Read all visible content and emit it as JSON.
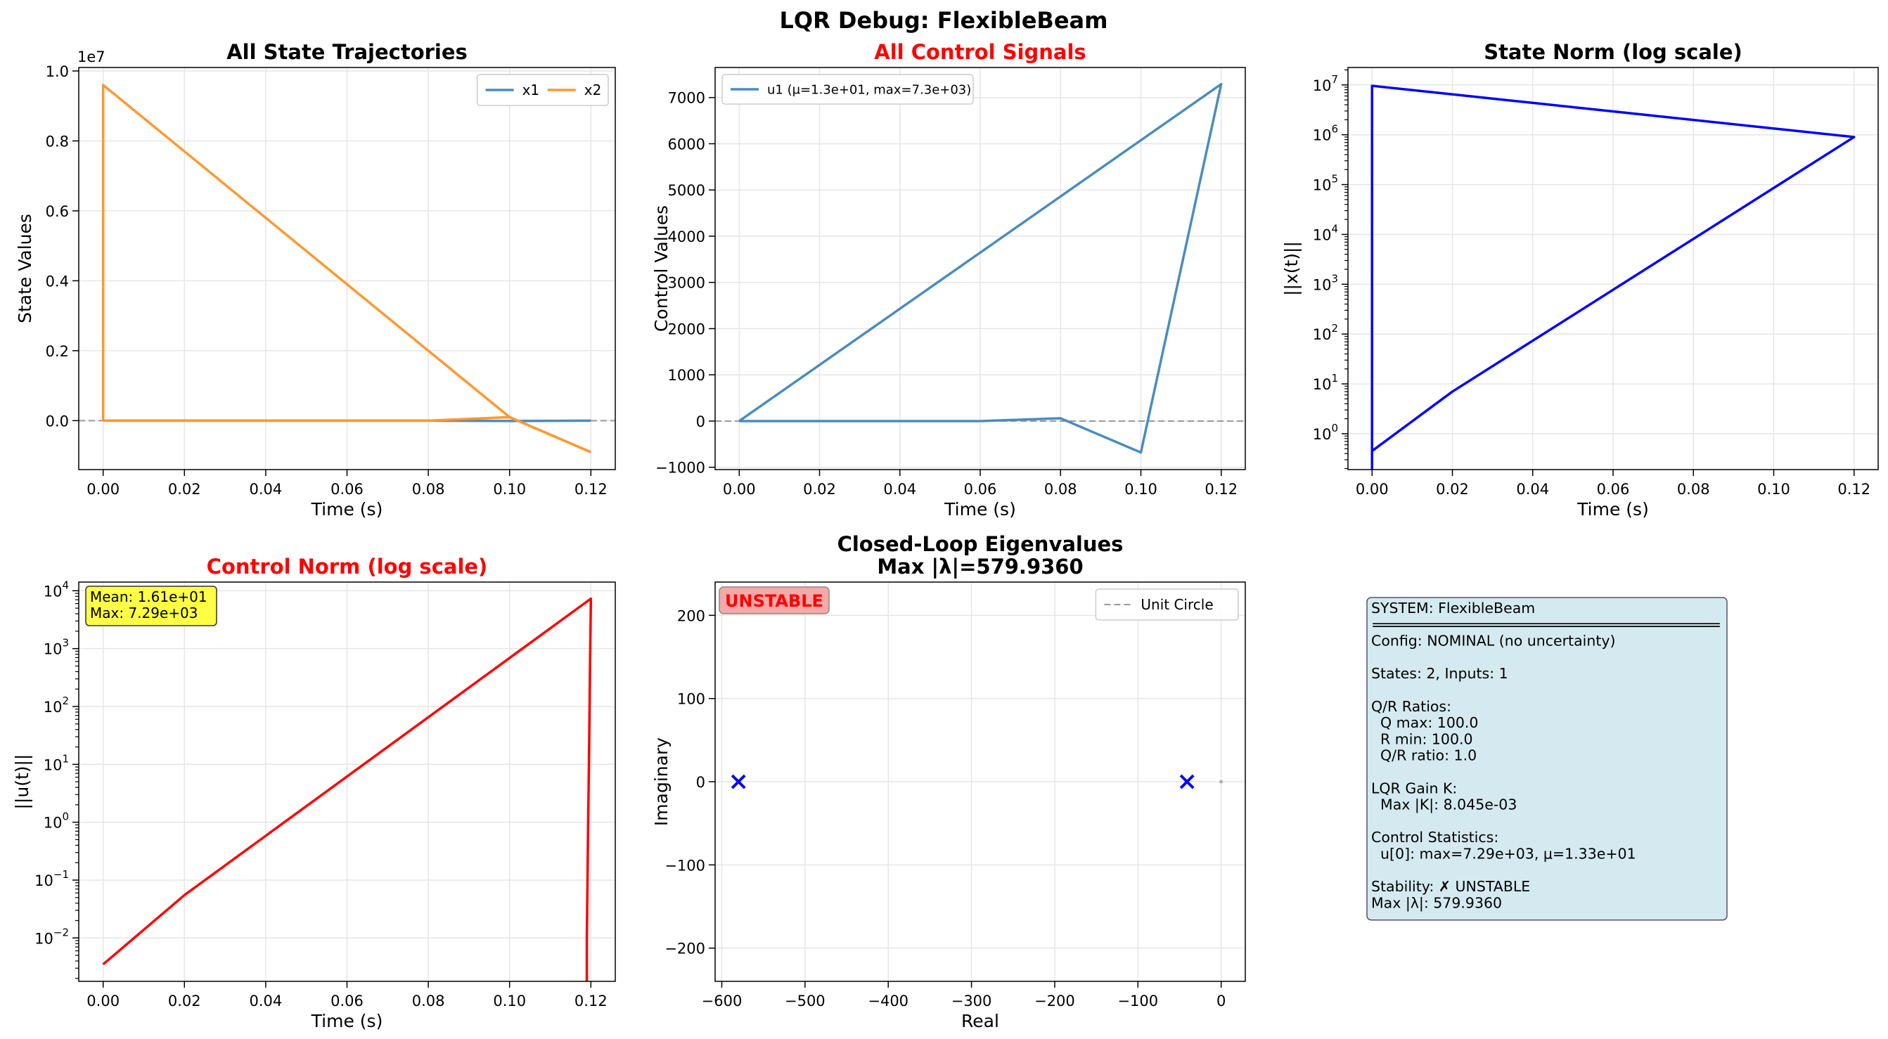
{
  "suptitle": "LQR Debug: FlexibleBeam",
  "colors": {
    "x1": "#4a8cbf",
    "x2": "#ff9831",
    "u1": "#4a8cbf",
    "state_norm": "#0000ff",
    "control_norm": "#ff0000",
    "eig": "#0000ff",
    "red_title": "#ff0000",
    "info_bg": "#d4eaf0",
    "badge_bg": "#f6a9a9",
    "stats_bg": "#ffff44"
  },
  "chart_data": [
    {
      "id": "states",
      "type": "line",
      "title": "All State Trajectories",
      "xlabel": "Time (s)",
      "ylabel": "State Values",
      "offset_text": "1e7",
      "xlim": [
        -0.006,
        0.126
      ],
      "ylim": [
        -0.14,
        1.01
      ],
      "xticks": [
        0.0,
        0.02,
        0.04,
        0.06,
        0.08,
        0.1,
        0.12
      ],
      "xticklabels": [
        "0.00",
        "0.02",
        "0.04",
        "0.06",
        "0.08",
        "0.10",
        "0.12"
      ],
      "yticks": [
        0.0,
        0.2,
        0.4,
        0.6,
        0.8,
        1.0
      ],
      "yticklabels": [
        "0.0",
        "0.2",
        "0.4",
        "0.6",
        "0.8",
        "1.0"
      ],
      "grid": true,
      "zero_line": true,
      "legend": "top-right",
      "series": [
        {
          "name": "x1",
          "x": [
            0.0,
            0.0,
            0.02,
            0.04,
            0.06,
            0.08,
            0.1,
            0.12
          ],
          "y": [
            0.0,
            0.0,
            0.0,
            0.0,
            0.0,
            0.0,
            -0.001,
            0.0
          ]
        },
        {
          "name": "x2",
          "x": [
            0.0,
            0.0,
            0.1,
            0.12
          ],
          "y": [
            0.0,
            0.96,
            0.01,
            -0.09
          ]
        },
        {
          "name": "x2",
          "x": [
            0.0,
            0.02,
            0.04,
            0.06,
            0.08,
            0.1,
            0.12
          ],
          "y": [
            0.0,
            0.0,
            0.0,
            0.0,
            0.0,
            0.01,
            -0.09
          ]
        }
      ]
    },
    {
      "id": "controls",
      "type": "line",
      "title": "All Control Signals",
      "title_color": "red",
      "xlabel": "Time (s)",
      "ylabel": "Control Values",
      "xlim": [
        -0.006,
        0.126
      ],
      "ylim": [
        -1050,
        7650
      ],
      "xticks": [
        0.0,
        0.02,
        0.04,
        0.06,
        0.08,
        0.1,
        0.12
      ],
      "xticklabels": [
        "0.00",
        "0.02",
        "0.04",
        "0.06",
        "0.08",
        "0.10",
        "0.12"
      ],
      "yticks": [
        -1000,
        0,
        1000,
        2000,
        3000,
        4000,
        5000,
        6000,
        7000
      ],
      "yticklabels": [
        "−1000",
        "0",
        "1000",
        "2000",
        "3000",
        "4000",
        "5000",
        "6000",
        "7000"
      ],
      "grid": true,
      "zero_line": true,
      "legend": "top-left",
      "series": [
        {
          "name": "u1 (μ=1.3e+01, max=7.3e+03)",
          "x": [
            0.0,
            0.12,
            0.1,
            0.08,
            0.06,
            0.0
          ],
          "y": [
            0,
            7290,
            -680,
            60,
            0,
            0
          ]
        }
      ]
    },
    {
      "id": "state_norm",
      "type": "line",
      "title": "State Norm (log scale)",
      "xlabel": "Time (s)",
      "ylabel": "||x(t)||",
      "yscale": "log",
      "xlim": [
        -0.006,
        0.126
      ],
      "ylim_log10": [
        -0.72,
        7.35
      ],
      "xticks": [
        0.0,
        0.02,
        0.04,
        0.06,
        0.08,
        0.1,
        0.12
      ],
      "xticklabels": [
        "0.00",
        "0.02",
        "0.04",
        "0.06",
        "0.08",
        "0.10",
        "0.12"
      ],
      "yticks_exp": [
        0,
        1,
        2,
        3,
        4,
        5,
        6,
        7
      ],
      "grid": true,
      "series": [
        {
          "name": "",
          "x": [
            0.0,
            0.0,
            0.12,
            0.02,
            0.0,
            0.0
          ],
          "y": [
            0.05,
            9600000,
            900000,
            7,
            0.45,
            0.05
          ]
        }
      ]
    },
    {
      "id": "control_norm",
      "type": "line",
      "title": "Control Norm (log scale)",
      "title_color": "red",
      "xlabel": "Time (s)",
      "ylabel": "||u(t)||",
      "yscale": "log",
      "xlim": [
        -0.006,
        0.126
      ],
      "ylim_log10": [
        -2.75,
        4.15
      ],
      "xticks": [
        0.0,
        0.02,
        0.04,
        0.06,
        0.08,
        0.1,
        0.12
      ],
      "xticklabels": [
        "0.00",
        "0.02",
        "0.04",
        "0.06",
        "0.08",
        "0.10",
        "0.12"
      ],
      "yticks_exp": [
        -2,
        -1,
        0,
        1,
        2,
        3,
        4
      ],
      "grid": true,
      "stats_box": [
        "Mean: 1.61e+01",
        "Max: 7.29e+03"
      ],
      "series": [
        {
          "name": "",
          "x": [
            0.0,
            0.02,
            0.12,
            0.119,
            0.119
          ],
          "y": [
            0.0035,
            0.055,
            7290,
            0.01,
            0.0015
          ]
        }
      ]
    },
    {
      "id": "eigenvalues",
      "type": "scatter",
      "title": "Closed-Loop Eigenvalues",
      "subtitle": "Max |λ|=579.9360",
      "xlabel": "Real",
      "ylabel": "Imaginary",
      "xlim": [
        -608,
        29
      ],
      "ylim": [
        -240,
        240
      ],
      "xticks": [
        -600,
        -500,
        -400,
        -300,
        -200,
        -100,
        0
      ],
      "xticklabels": [
        "−600",
        "−500",
        "−400",
        "−300",
        "−200",
        "−100",
        "0"
      ],
      "yticks": [
        -200,
        -100,
        0,
        100,
        200
      ],
      "yticklabels": [
        "−200",
        "−100",
        "0",
        "100",
        "200"
      ],
      "grid": true,
      "legend": "top-right",
      "badge": "UNSTABLE",
      "unit_circle": {
        "name": "Unit Circle",
        "radius": 1
      },
      "points": [
        {
          "x": -579.936,
          "y": 0
        },
        {
          "x": -41,
          "y": 0
        }
      ]
    }
  ],
  "info_panel": {
    "lines": [
      "SYSTEM: FlexibleBeam",
      "========================================",
      "Config: NOMINAL (no uncertainty)",
      "",
      "States: 2, Inputs: 1",
      "",
      "Q/R Ratios:",
      "  Q max: 100.0",
      "  R min: 100.0",
      "  Q/R ratio: 1.0",
      "",
      "LQR Gain K:",
      "  Max |K|: 8.045e-03",
      "",
      "Control Statistics:",
      "  u[0]: max=7.29e+03, μ=1.33e+01",
      "",
      "Stability: ✗ UNSTABLE",
      "Max |λ|: 579.9360"
    ]
  }
}
